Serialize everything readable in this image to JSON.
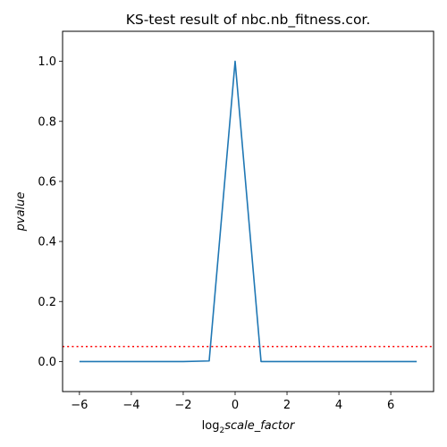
{
  "chart_data": {
    "type": "line",
    "title": "KS-test result of nbc.nb_fitness.cor.",
    "xlabel": {
      "prefix": "log",
      "subscript": "2",
      "variable": "scale_factor"
    },
    "ylabel": "pvalue",
    "xlim": [
      -6.65,
      7.65
    ],
    "ylim": [
      -0.1,
      1.1
    ],
    "xticks": [
      -6,
      -4,
      -2,
      0,
      2,
      4,
      6
    ],
    "yticks": [
      0.0,
      0.2,
      0.4,
      0.6,
      0.8,
      1.0
    ],
    "xtick_labels": [
      "−6",
      "−4",
      "−2",
      "0",
      "2",
      "4",
      "6"
    ],
    "ytick_labels": [
      "0.0",
      "0.2",
      "0.4",
      "0.6",
      "0.8",
      "1.0"
    ],
    "grid": false,
    "series": [
      {
        "color": "#1f77b4",
        "style": "solid",
        "x": [
          -6,
          -5,
          -4,
          -3,
          -2,
          -1,
          0,
          1,
          2,
          3,
          4,
          5,
          6,
          7
        ],
        "y": [
          0,
          0,
          0,
          0,
          0,
          0.002,
          1.0,
          0,
          0,
          0,
          0,
          0,
          0,
          0
        ]
      }
    ],
    "reference_line": {
      "y": 0.05,
      "color": "#ff0000",
      "style": "dotted"
    }
  }
}
